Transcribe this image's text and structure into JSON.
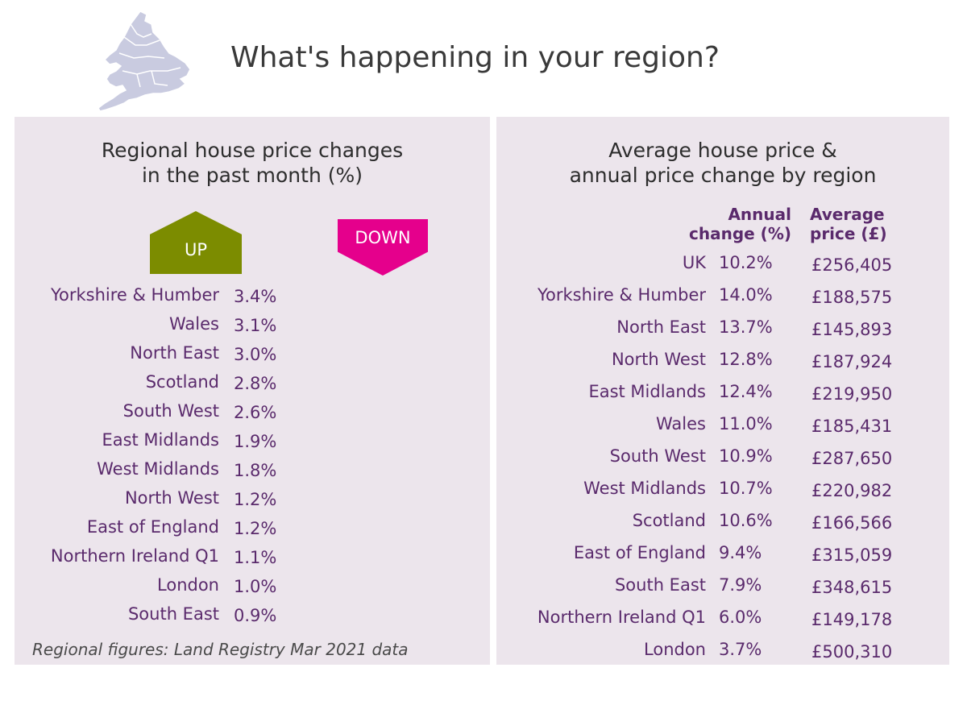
{
  "header": {
    "title": "What's happening in your region?",
    "map_icon": "uk-map-icon"
  },
  "monthly_panel": {
    "title_lines": [
      "Regional house price changes",
      "in the past month (%)"
    ],
    "up_label": "UP",
    "down_label": "DOWN",
    "rows": [
      {
        "region": "Yorkshire & Humber",
        "change": "3.4%"
      },
      {
        "region": "Wales",
        "change": "3.1%"
      },
      {
        "region": "North East",
        "change": "3.0%"
      },
      {
        "region": "Scotland",
        "change": "2.8%"
      },
      {
        "region": "South West",
        "change": "2.6%"
      },
      {
        "region": "East Midlands",
        "change": "1.9%"
      },
      {
        "region": "West Midlands",
        "change": "1.8%"
      },
      {
        "region": "North West",
        "change": "1.2%"
      },
      {
        "region": "East of England",
        "change": "1.2%"
      },
      {
        "region": "Northern Ireland Q1",
        "change": "1.1%"
      },
      {
        "region": "London",
        "change": "1.0%"
      },
      {
        "region": "South East",
        "change": "0.9%"
      }
    ],
    "footnote": "Regional figures: Land Registry Mar 2021 data"
  },
  "annual_panel": {
    "title_lines": [
      "Average house price &",
      "annual price change by region"
    ],
    "col_change_lines": [
      "Annual",
      "change (%)"
    ],
    "col_price_lines": [
      "Average",
      "price (£)"
    ],
    "rows": [
      {
        "region": "UK",
        "change": "10.2%",
        "price": "£256,405"
      },
      {
        "region": "Yorkshire & Humber",
        "change": "14.0%",
        "price": "£188,575"
      },
      {
        "region": "North East",
        "change": "13.7%",
        "price": "£145,893"
      },
      {
        "region": "North West",
        "change": "12.8%",
        "price": "£187,924"
      },
      {
        "region": "East Midlands",
        "change": "12.4%",
        "price": "£219,950"
      },
      {
        "region": "Wales",
        "change": "11.0%",
        "price": "£185,431"
      },
      {
        "region": "South West",
        "change": "10.9%",
        "price": "£287,650"
      },
      {
        "region": "West Midlands",
        "change": "10.7%",
        "price": "£220,982"
      },
      {
        "region": "Scotland",
        "change": "10.6%",
        "price": "£166,566"
      },
      {
        "region": "East of England",
        "change": "9.4%",
        "price": "£315,059"
      },
      {
        "region": "South East",
        "change": "7.9%",
        "price": "£348,615"
      },
      {
        "region": "Northern Ireland Q1",
        "change": "6.0%",
        "price": "£149,178"
      },
      {
        "region": "London",
        "change": "3.7%",
        "price": "£500,310"
      }
    ]
  },
  "colors": {
    "panel_bg": "#ece5ec",
    "text_purple": "#5a2a6c",
    "up_green": "#7c8c00",
    "down_pink": "#e5008c",
    "map_fill": "#c9cbe0"
  }
}
